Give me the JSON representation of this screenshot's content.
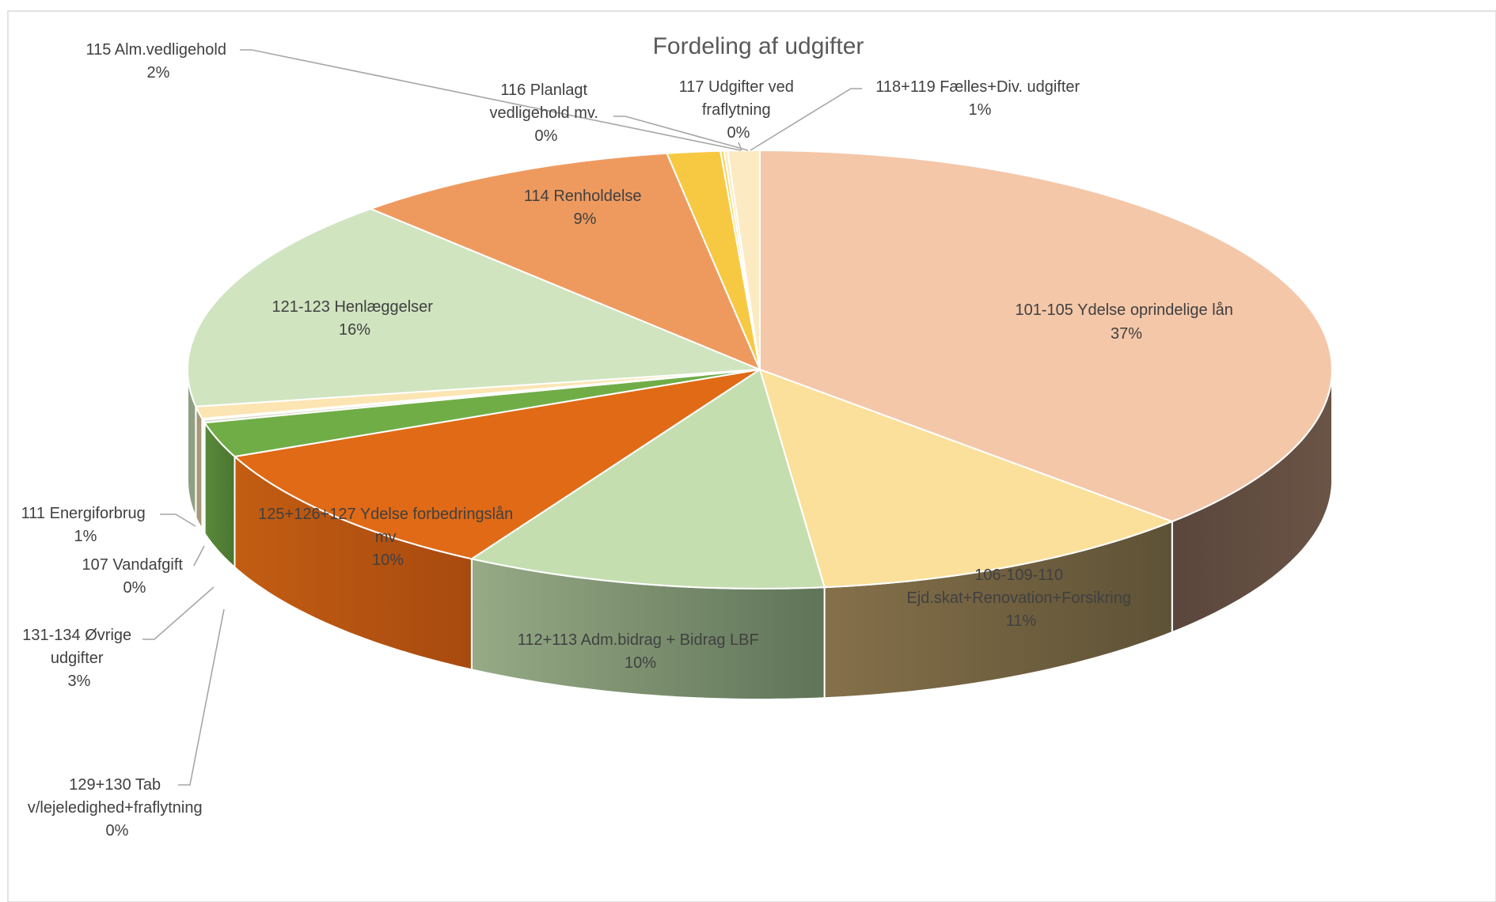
{
  "chart_data": {
    "type": "pie",
    "title": "Fordeling af udgifter",
    "start_angle_deg": -90,
    "slices": [
      {
        "id": "s101",
        "lines": [
          "101-105  Ydelse oprindelige lån"
        ],
        "pct_label": "37%",
        "value": 37.2,
        "color": "#F4C7A9",
        "side": "#5F4B40"
      },
      {
        "id": "s106",
        "lines": [
          "106-109-110",
          "Ejd.skat+Renovation+Forsikring"
        ],
        "pct_label": "11%",
        "value": 11.0,
        "color": "#FAE09A",
        "side": "#6B5B3A"
      },
      {
        "id": "s112",
        "lines": [
          "112+113 Adm.bidrag + Bidrag LBF"
        ],
        "pct_label": "10%",
        "value": 10.2,
        "color": "#C5DEB0",
        "side": "#7E9371"
      },
      {
        "id": "s125",
        "lines": [
          "125+126+127 Ydelse forbedringslån",
          "mv"
        ],
        "pct_label": "10%",
        "value": 10.1,
        "color": "#E06A16",
        "side": "#B5500E"
      },
      {
        "id": "s131",
        "lines": [
          "131-134 Øvrige",
          "udgifter"
        ],
        "pct_label": "3%",
        "value": 2.6,
        "color": "#70AD47",
        "side": "#4D7C30"
      },
      {
        "id": "s129",
        "lines": [
          "129+130 Tab",
          "v/lejeledighed+fraflytning"
        ],
        "pct_label": "0%",
        "value": 0.2,
        "color": "#D9D9C8",
        "side": "#9A9A88"
      },
      {
        "id": "s107",
        "lines": [
          "107 Vandafgift"
        ],
        "pct_label": "0%",
        "value": 0.1,
        "color": "#EFE3C0",
        "side": "#A09878"
      },
      {
        "id": "s111",
        "lines": [
          "111 Energiforbrug"
        ],
        "pct_label": "1%",
        "value": 0.9,
        "color": "#FCE5B3",
        "side": "#A8987A"
      },
      {
        "id": "s121",
        "lines": [
          "121-123 Henlæggelser"
        ],
        "pct_label": "16%",
        "value": 15.8,
        "color": "#D0E4C0",
        "side": "#8FA082"
      },
      {
        "id": "s114",
        "lines": [
          "114 Renholdelse"
        ],
        "pct_label": "9%",
        "value": 9.3,
        "color": "#EE9A5F",
        "side": "#A8683B"
      },
      {
        "id": "s115",
        "lines": [
          "115 Alm.vedligehold"
        ],
        "pct_label": "2%",
        "value": 1.5,
        "color": "#F7C942",
        "side": "#A8852A"
      },
      {
        "id": "s116",
        "lines": [
          "116 Planlagt",
          "vedligehold mv."
        ],
        "pct_label": "0%",
        "value": 0.1,
        "color": "#F8D466",
        "side": "#A88A3A"
      },
      {
        "id": "s117",
        "lines": [
          "117 Udgifter ved",
          "fraflytning"
        ],
        "pct_label": "0%",
        "value": 0.1,
        "color": "#FBE9B8",
        "side": "#A89A7A"
      },
      {
        "id": "s118",
        "lines": [
          "118+119 Fælles+Div. udgifter"
        ],
        "pct_label": "1%",
        "value": 0.9,
        "color": "#FCEBC2",
        "side": "#A89C80"
      }
    ]
  }
}
